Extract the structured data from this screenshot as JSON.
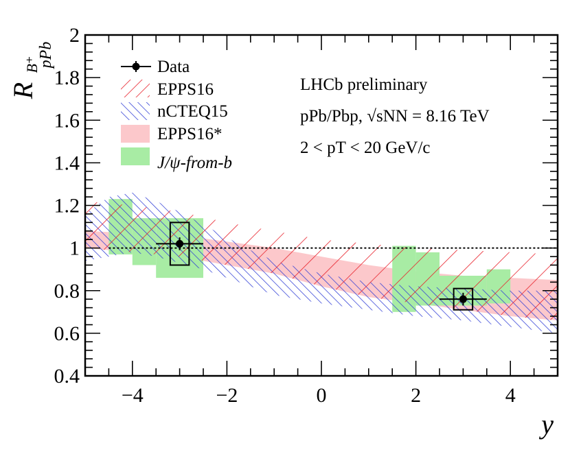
{
  "chart_data": {
    "type": "scatter",
    "xlabel": "y",
    "ylabel": {
      "main": "R",
      "superscript": "B⁺",
      "subscript": "pPb"
    },
    "xlim": [
      -5,
      5
    ],
    "ylim": [
      0.4,
      2.0
    ],
    "x_ticks": [
      -4,
      -2,
      0,
      2,
      4
    ],
    "x_tick_labels": [
      "−4",
      "−2",
      "0",
      "2",
      "4"
    ],
    "y_ticks": [
      0.4,
      0.6,
      0.8,
      1.0,
      1.2,
      1.4,
      1.6,
      1.8,
      2.0
    ],
    "y_tick_labels": [
      "0.4",
      "0.6",
      "0.8",
      "1",
      "1.2",
      "1.4",
      "1.6",
      "1.8",
      "2"
    ],
    "reference_line": 1.0,
    "series": [
      {
        "name": "Data",
        "style": "points-with-errors",
        "color": "#000000",
        "points": [
          {
            "x": -3.0,
            "y": 1.02,
            "x_err": 0.5,
            "stat_err": 0.03,
            "syst_low": 0.92,
            "syst_high": 1.12,
            "syst_halfwidth": 0.2
          },
          {
            "x": 3.0,
            "y": 0.76,
            "x_err": 0.5,
            "stat_err": 0.03,
            "syst_low": 0.71,
            "syst_high": 0.81,
            "syst_halfwidth": 0.2
          }
        ]
      },
      {
        "name": "EPPS16",
        "style": "hatched-band",
        "color": "#e8202a",
        "x": [
          -5,
          -4,
          -3,
          -2,
          -1,
          0,
          1,
          2,
          3,
          4,
          5
        ],
        "low": [
          1.0,
          0.98,
          0.96,
          0.92,
          0.88,
          0.82,
          0.77,
          0.74,
          0.71,
          0.68,
          0.66
        ],
        "high": [
          1.22,
          1.2,
          1.17,
          1.12,
          1.08,
          1.04,
          1.02,
          1.0,
          0.99,
          0.98,
          0.97
        ]
      },
      {
        "name": "nCTEQ15",
        "style": "hatched-band",
        "color": "#2e3cd6",
        "x": [
          -5,
          -4.5,
          -4,
          -3.5,
          -3,
          -2.5,
          -2,
          -1.5,
          -1,
          0,
          1,
          2,
          3,
          4,
          5
        ],
        "low": [
          0.94,
          0.96,
          0.98,
          0.96,
          0.93,
          0.9,
          0.86,
          0.82,
          0.78,
          0.74,
          0.71,
          0.68,
          0.66,
          0.63,
          0.6
        ],
        "high": [
          1.16,
          1.24,
          1.26,
          1.22,
          1.17,
          1.11,
          1.05,
          0.99,
          0.94,
          0.88,
          0.84,
          0.82,
          0.81,
          0.8,
          0.8
        ]
      },
      {
        "name": "EPPS16*",
        "style": "filled-band",
        "color": "#fcc8cb",
        "x": [
          -5,
          -4,
          -3,
          -2,
          -1,
          0,
          1,
          2,
          3,
          4,
          5
        ],
        "low": [
          1.0,
          0.98,
          0.96,
          0.92,
          0.88,
          0.82,
          0.77,
          0.74,
          0.71,
          0.68,
          0.66
        ],
        "high": [
          1.08,
          1.07,
          1.06,
          1.03,
          1.0,
          0.96,
          0.92,
          0.89,
          0.87,
          0.86,
          0.85
        ]
      },
      {
        "name": "J/ψ-from-b",
        "style": "boxes",
        "color": "#a8eca4",
        "boxes": [
          {
            "x0": -4.5,
            "x1": -4.0,
            "low": 0.97,
            "high": 1.23
          },
          {
            "x0": -4.0,
            "x1": -3.5,
            "low": 0.92,
            "high": 1.14
          },
          {
            "x0": -3.5,
            "x1": -2.5,
            "low": 0.86,
            "high": 1.14
          },
          {
            "x0": 1.5,
            "x1": 2.0,
            "low": 0.7,
            "high": 1.01
          },
          {
            "x0": 2.0,
            "x1": 2.5,
            "low": 0.73,
            "high": 0.98
          },
          {
            "x0": 2.5,
            "x1": 3.5,
            "low": 0.73,
            "high": 0.87
          },
          {
            "x0": 3.5,
            "x1": 4.0,
            "low": 0.74,
            "high": 0.9
          }
        ]
      }
    ],
    "legend": {
      "placement": "top-left",
      "entries": [
        {
          "label": "Data",
          "kind": "marker"
        },
        {
          "label": "EPPS16",
          "kind": "hatch-red"
        },
        {
          "label": "nCTEQ15",
          "kind": "hatch-blue"
        },
        {
          "label": "EPPS16*",
          "kind": "fill-pink"
        },
        {
          "label": "J/ψ-from-b",
          "kind": "fill-green"
        }
      ]
    },
    "annotations": {
      "line1": "LHCb preliminary",
      "line2": "pPb/Pbp, √sNN = 8.16 TeV",
      "line3": "2 < pT < 20 GeV/c"
    }
  }
}
